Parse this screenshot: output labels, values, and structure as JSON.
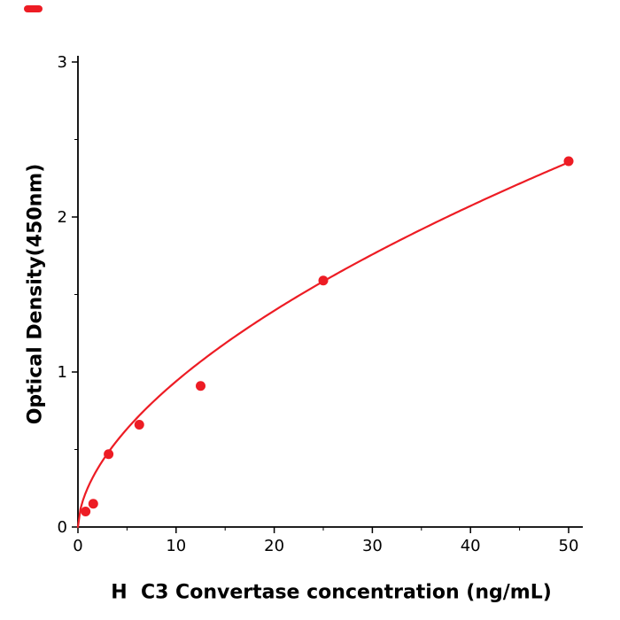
{
  "figure": {
    "background": "#ffffff",
    "accent_color": "#ed1c24"
  },
  "chart_data": {
    "type": "scatter",
    "title": "",
    "xlabel": "H  C3 Convertase concentration (ng/mL)",
    "ylabel": "Optical Density(450nm)",
    "xlim": [
      0,
      50
    ],
    "ylim": [
      0,
      3
    ],
    "x_ticks": [
      0,
      10,
      20,
      30,
      40,
      50
    ],
    "y_ticks": [
      0,
      1,
      2,
      3
    ],
    "x_minor_ticks": [
      5,
      15,
      25,
      35,
      45
    ],
    "y_minor_ticks": [
      0.5,
      1.5,
      2.5
    ],
    "grid": false,
    "legend": "none",
    "series": [
      {
        "name": "H C3 Convertase",
        "type": "scatter-with-fit",
        "color": "#ed1c24",
        "points": [
          [
            0.78,
            0.1
          ],
          [
            1.56,
            0.15
          ],
          [
            3.125,
            0.47
          ],
          [
            6.25,
            0.66
          ],
          [
            12.5,
            0.91
          ],
          [
            25,
            1.59
          ],
          [
            50,
            2.36
          ]
        ],
        "fit": {
          "model": "power",
          "a": 0.253,
          "b": 0.57
        }
      }
    ]
  }
}
